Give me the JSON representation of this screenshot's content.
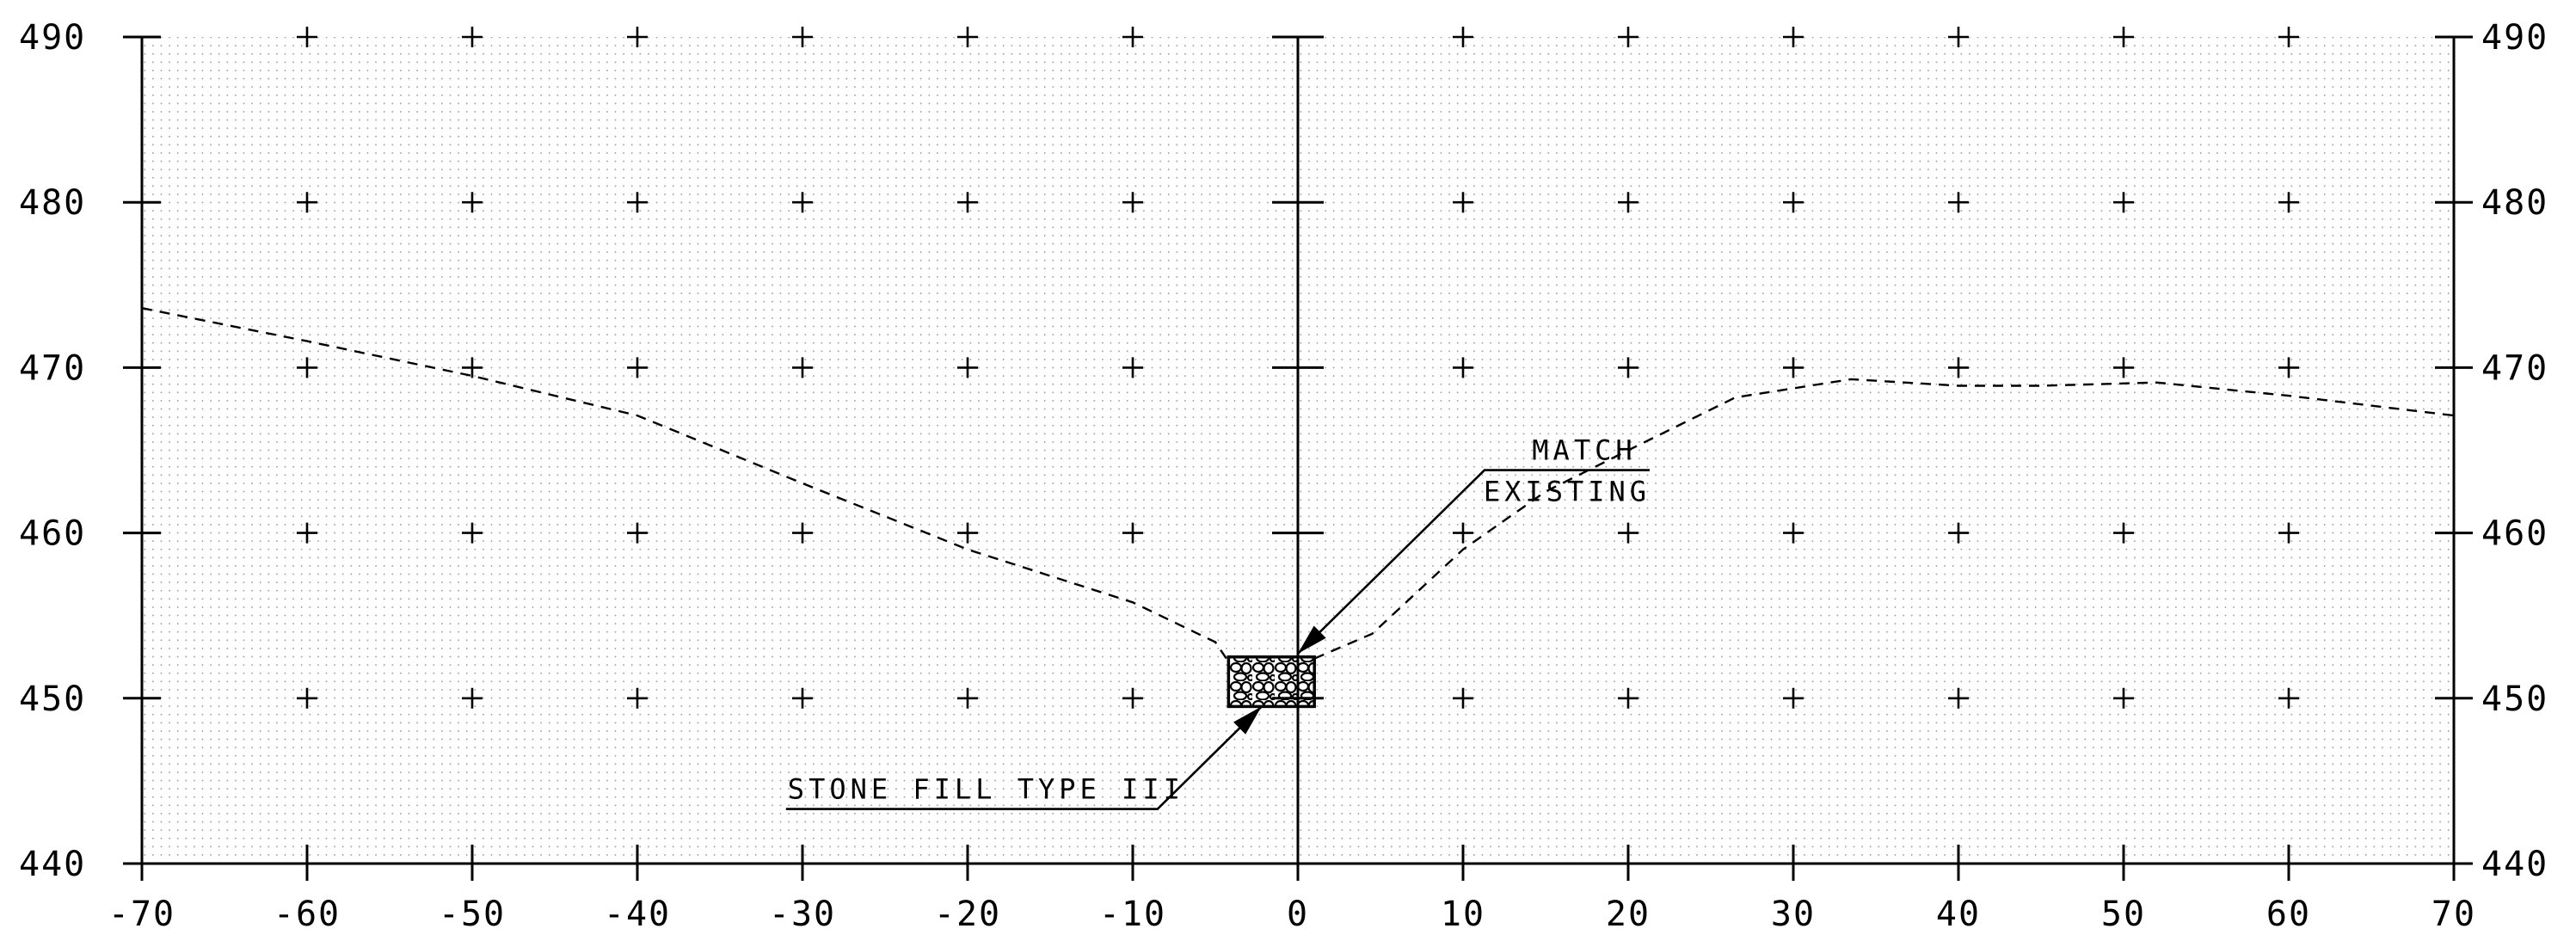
{
  "chart_data": {
    "type": "line",
    "title": "",
    "xlabel": "",
    "ylabel": "",
    "xlim": [
      -70,
      70
    ],
    "ylim": [
      440,
      490
    ],
    "x_ticks": [
      -70,
      -60,
      -50,
      -40,
      -30,
      -20,
      -10,
      0,
      10,
      20,
      30,
      40,
      50,
      60,
      70
    ],
    "x_tick_labels": [
      "-70",
      "-60",
      "-50",
      "-40",
      "-30",
      "-20",
      "-10",
      "0",
      "10",
      "20",
      "30",
      "40",
      "50",
      "60",
      "70"
    ],
    "y_ticks": [
      440,
      450,
      460,
      470,
      480,
      490
    ],
    "y_tick_labels": [
      "440",
      "450",
      "460",
      "470",
      "480",
      "490"
    ],
    "grid": "dotted grid with + marks at 10-unit intersections",
    "series": [
      {
        "style": "dashed",
        "points": [
          [
            -70,
            473.6
          ],
          [
            -65,
            472.6
          ],
          [
            -60,
            471.6
          ],
          [
            -50,
            469.5
          ],
          [
            -40,
            467.1
          ],
          [
            -30,
            463.0
          ],
          [
            -20,
            459.0
          ],
          [
            -10,
            455.8
          ],
          [
            -5,
            453.4
          ],
          [
            -4.2,
            452.2
          ]
        ]
      },
      {
        "style": "dashed",
        "points": [
          [
            1.0,
            452.4
          ],
          [
            4.5,
            453.9
          ],
          [
            10,
            459.0
          ],
          [
            15,
            462.5
          ],
          [
            20,
            465.0
          ],
          [
            26.5,
            468.2
          ],
          [
            33.5,
            469.3
          ],
          [
            40,
            468.9
          ],
          [
            45,
            468.9
          ],
          [
            52,
            469.1
          ],
          [
            60,
            468.3
          ],
          [
            70,
            467.1
          ]
        ]
      }
    ],
    "stone_fill_block": {
      "x": [
        -4.2,
        1.0
      ],
      "y": [
        449.5,
        452.5
      ]
    },
    "annotations": [
      {
        "text_lines": [
          "STONE FILL TYPE III"
        ],
        "label_x": -31,
        "baseline_y": 443.3,
        "bend_x": -8.5,
        "arrow_to": [
          -2.2,
          449.5
        ]
      },
      {
        "text_lines": [
          "MATCH",
          "EXISTING"
        ],
        "label_x": 11.3,
        "baseline_y": 463.8,
        "end_x": 21.3,
        "arrow_to": [
          0.0,
          452.7
        ]
      }
    ],
    "colors": {
      "lines": "#000000",
      "grid_dots": "#9a9a9a",
      "background": "#ffffff"
    }
  }
}
